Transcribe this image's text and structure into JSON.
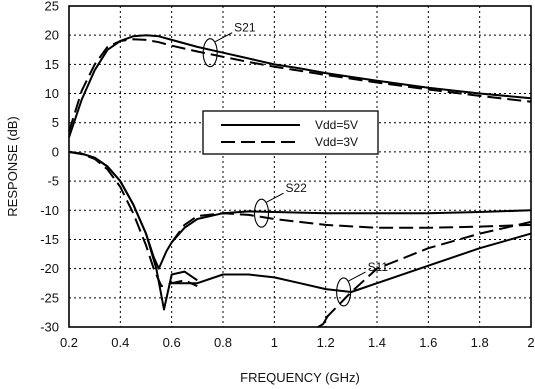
{
  "chart_data": {
    "type": "line",
    "xlabel": "FREQUENCY (GHz)",
    "ylabel": "RESPONSE (dB)",
    "xlim": [
      0.2,
      2.0
    ],
    "ylim": [
      -30,
      25
    ],
    "x_ticks": [
      "0.2",
      "0.4",
      "0.6",
      "0.8",
      "1",
      "1.2",
      "1.4",
      "1.6",
      "1.8",
      "2"
    ],
    "y_ticks": [
      "25",
      "20",
      "15",
      "10",
      "5",
      "0",
      "-5",
      "-10",
      "-15",
      "-20",
      "-25",
      "-30"
    ],
    "grid": "dotted",
    "legend": {
      "placement": "center",
      "entries": [
        {
          "label": "Vdd=5V",
          "style": "solid"
        },
        {
          "label": "Vdd=3V",
          "style": "dashed"
        }
      ]
    },
    "annotations": [
      {
        "text": "S21",
        "x": 0.75,
        "y": 17
      },
      {
        "text": "S22",
        "x": 0.95,
        "y": -10.5
      },
      {
        "text": "S11",
        "x": 1.27,
        "y": -24
      }
    ],
    "series": [
      {
        "group": "S21",
        "style": "solid",
        "x": [
          0.2,
          0.25,
          0.3,
          0.35,
          0.4,
          0.45,
          0.5,
          0.55,
          0.6,
          0.7,
          0.8,
          0.9,
          1.0,
          1.1,
          1.2,
          1.4,
          1.6,
          1.8,
          2.0
        ],
        "y": [
          2.5,
          9,
          14,
          17.5,
          19,
          19.8,
          20,
          19.8,
          19.2,
          18,
          17,
          16,
          15,
          14.3,
          13.5,
          12.2,
          11,
          10,
          9.2
        ]
      },
      {
        "group": "S21",
        "style": "dashed",
        "x": [
          0.2,
          0.25,
          0.3,
          0.35,
          0.4,
          0.45,
          0.5,
          0.55,
          0.6,
          0.7,
          0.8,
          0.9,
          1.0,
          1.1,
          1.2,
          1.4,
          1.6,
          1.8,
          2.0
        ],
        "y": [
          3.5,
          10.5,
          15,
          18,
          19,
          19.3,
          19.2,
          18.8,
          18.2,
          17.2,
          16.3,
          15.4,
          14.6,
          13.9,
          13.2,
          11.9,
          10.7,
          9.6,
          8.6
        ]
      },
      {
        "group": "S11",
        "style": "solid",
        "x": [
          0.2,
          0.25,
          0.3,
          0.35,
          0.4,
          0.45,
          0.5,
          0.54,
          0.57,
          0.6,
          0.65,
          0.7
        ],
        "y": [
          0,
          -0.3,
          -1,
          -2.5,
          -5,
          -9,
          -14,
          -20,
          -27,
          -21,
          -20.5,
          -22
        ]
      },
      {
        "group": "S11",
        "style": "dashed",
        "x": [
          0.2,
          0.25,
          0.3,
          0.35,
          0.4,
          0.45,
          0.5,
          0.53,
          0.56,
          0.6,
          0.65,
          0.7
        ],
        "y": [
          0,
          -0.4,
          -1.2,
          -3,
          -6,
          -10.5,
          -16,
          -20,
          -23,
          -22.5,
          -22,
          -23
        ]
      },
      {
        "group": "S22",
        "style": "solid",
        "x": [
          0.2,
          0.25,
          0.3,
          0.35,
          0.4,
          0.45,
          0.5,
          0.53,
          0.55,
          0.58,
          0.6,
          0.65,
          0.7,
          0.8,
          0.9,
          1.0,
          1.2,
          1.4,
          1.6,
          1.8,
          2.0
        ],
        "y": [
          0,
          -0.3,
          -1,
          -2.5,
          -5,
          -9,
          -14,
          -18,
          -20,
          -17,
          -15.5,
          -13,
          -11.5,
          -10.5,
          -10.2,
          -10.3,
          -10.5,
          -10.5,
          -10.5,
          -10.3,
          -10
        ],
        "note": "S22 Vdd=5V"
      },
      {
        "group": "S22",
        "style": "dashed",
        "x": [
          0.6,
          0.65,
          0.7,
          0.8,
          0.9,
          1.0,
          1.2,
          1.4,
          1.6,
          1.8,
          2.0
        ],
        "y": [
          -15.5,
          -12.5,
          -11,
          -10.5,
          -10.8,
          -11.5,
          -12.5,
          -13,
          -13,
          -12.8,
          -12.5
        ],
        "note": "S22 Vdd=3V"
      },
      {
        "group": "S11-high",
        "style": "solid",
        "x": [
          0.6,
          0.7,
          0.8,
          0.9,
          1.0,
          1.1,
          1.2,
          1.3,
          1.4,
          1.6,
          1.8,
          2.0
        ],
        "y": [
          -22.5,
          -22.5,
          -21,
          -21,
          -21.5,
          -22.5,
          -23.5,
          -24,
          -22.5,
          -19.5,
          -16.5,
          -14
        ],
        "note": "S11 Vdd=5V"
      },
      {
        "group": "S11-high",
        "style": "dashed",
        "x": [
          1.2,
          1.3,
          1.4,
          1.6,
          1.8,
          2.0
        ],
        "y": [
          -28.5,
          -24,
          -20,
          -16.5,
          -14,
          -12
        ],
        "note": "S11 Vdd=3V"
      },
      {
        "group": "S11-low",
        "style": "solid",
        "x": [
          1.17,
          1.19,
          1.21
        ],
        "y": [
          -31,
          -29.5,
          -28
        ],
        "note": "S11 fragment"
      }
    ]
  }
}
